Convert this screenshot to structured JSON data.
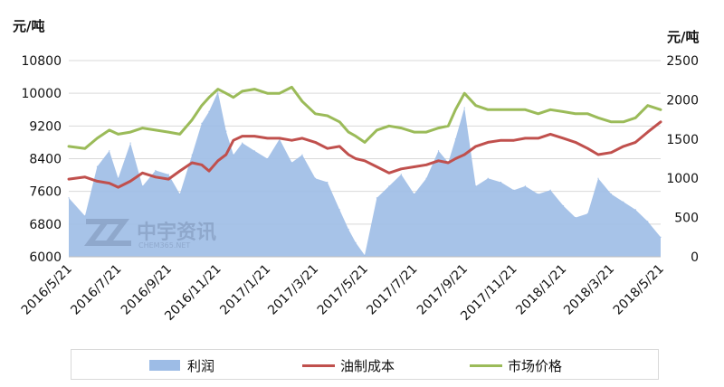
{
  "chart_data": {
    "type": "area",
    "y_left_unit": "元/吨",
    "y_right_unit": "元/吨",
    "y_left_ticks": [
      "10800",
      "10000",
      "9200",
      "8400",
      "7600",
      "6800",
      "6000"
    ],
    "y_right_ticks": [
      "2500",
      "2000",
      "1500",
      "1000",
      "500",
      "0"
    ],
    "ylim_left": [
      6000,
      10800
    ],
    "ylim_right": [
      0,
      2500
    ],
    "x_ticks": [
      "2016/5/21",
      "2016/7/21",
      "2016/9/21",
      "2016/11/21",
      "2017/1/21",
      "2017/3/21",
      "2017/5/21",
      "2017/7/21",
      "2017/9/21",
      "2017/11/21",
      "2018/1/21",
      "2018/3/21",
      "2018/5/21"
    ],
    "x_range": [
      "2016/5/21",
      "2018/5/21"
    ],
    "grid": "horizontal",
    "legend_position": "bottom",
    "series": [
      {
        "name": "利润",
        "type": "area",
        "axis": "right",
        "color": "#9dbce6",
        "x": [
          "2016/5/21",
          "2016/6/10",
          "2016/6/25",
          "2016/7/10",
          "2016/7/21",
          "2016/8/5",
          "2016/8/20",
          "2016/9/5",
          "2016/9/21",
          "2016/10/5",
          "2016/10/20",
          "2016/11/1",
          "2016/11/10",
          "2016/11/21",
          "2016/12/1",
          "2016/12/10",
          "2016/12/21",
          "2017/1/5",
          "2017/1/21",
          "2017/2/5",
          "2017/2/20",
          "2017/3/5",
          "2017/3/21",
          "2017/4/5",
          "2017/4/20",
          "2017/5/1",
          "2017/5/10",
          "2017/5/21",
          "2017/6/5",
          "2017/6/20",
          "2017/7/5",
          "2017/7/21",
          "2017/8/5",
          "2017/8/20",
          "2017/9/1",
          "2017/9/10",
          "2017/9/21",
          "2017/10/5",
          "2017/10/20",
          "2017/11/5",
          "2017/11/21",
          "2017/12/5",
          "2017/12/21",
          "2018/1/5",
          "2018/1/21",
          "2018/2/5",
          "2018/2/20",
          "2018/3/5",
          "2018/3/21",
          "2018/4/5",
          "2018/4/20",
          "2018/5/5",
          "2018/5/21"
        ],
        "values": [
          750,
          520,
          1150,
          1350,
          1000,
          1450,
          900,
          1100,
          1050,
          800,
          1300,
          1700,
          1850,
          2100,
          1600,
          1300,
          1450,
          1350,
          1250,
          1500,
          1200,
          1300,
          1000,
          950,
          600,
          350,
          180,
          20,
          750,
          900,
          1050,
          800,
          1000,
          1350,
          1200,
          1500,
          1900,
          900,
          1000,
          950,
          850,
          900,
          800,
          850,
          650,
          500,
          550,
          1000,
          800,
          700,
          600,
          450,
          250
        ]
      },
      {
        "name": "油制成本",
        "type": "line",
        "axis": "left",
        "color": "#c0504d",
        "x": [
          "2016/5/21",
          "2016/6/10",
          "2016/6/25",
          "2016/7/10",
          "2016/7/21",
          "2016/8/5",
          "2016/8/20",
          "2016/9/5",
          "2016/9/21",
          "2016/10/5",
          "2016/10/20",
          "2016/11/1",
          "2016/11/10",
          "2016/11/21",
          "2016/12/1",
          "2016/12/10",
          "2016/12/21",
          "2017/1/5",
          "2017/1/21",
          "2017/2/5",
          "2017/2/20",
          "2017/3/5",
          "2017/3/21",
          "2017/4/5",
          "2017/4/20",
          "2017/5/1",
          "2017/5/10",
          "2017/5/21",
          "2017/6/5",
          "2017/6/20",
          "2017/7/5",
          "2017/7/21",
          "2017/8/5",
          "2017/8/20",
          "2017/9/1",
          "2017/9/10",
          "2017/9/21",
          "2017/10/5",
          "2017/10/20",
          "2017/11/5",
          "2017/11/21",
          "2017/12/5",
          "2017/12/21",
          "2018/1/5",
          "2018/1/21",
          "2018/2/5",
          "2018/2/20",
          "2018/3/5",
          "2018/3/21",
          "2018/4/5",
          "2018/4/20",
          "2018/5/5",
          "2018/5/21"
        ],
        "values": [
          7900,
          7950,
          7850,
          7800,
          7700,
          7850,
          8050,
          7950,
          7900,
          8100,
          8300,
          8250,
          8100,
          8350,
          8500,
          8850,
          8950,
          8950,
          8900,
          8900,
          8850,
          8900,
          8800,
          8650,
          8700,
          8500,
          8400,
          8350,
          8200,
          8050,
          8150,
          8200,
          8250,
          8350,
          8300,
          8400,
          8500,
          8700,
          8800,
          8850,
          8850,
          8900,
          8900,
          9000,
          8900,
          8800,
          8650,
          8500,
          8550,
          8700,
          8800,
          9050,
          9300
        ]
      },
      {
        "name": "市场价格",
        "type": "line",
        "axis": "left",
        "color": "#9bbb59",
        "x": [
          "2016/5/21",
          "2016/6/10",
          "2016/6/25",
          "2016/7/10",
          "2016/7/21",
          "2016/8/5",
          "2016/8/20",
          "2016/9/5",
          "2016/9/21",
          "2016/10/5",
          "2016/10/20",
          "2016/11/1",
          "2016/11/10",
          "2016/11/21",
          "2016/12/1",
          "2016/12/10",
          "2016/12/21",
          "2017/1/5",
          "2017/1/21",
          "2017/2/5",
          "2017/2/20",
          "2017/3/5",
          "2017/3/21",
          "2017/4/5",
          "2017/4/20",
          "2017/5/1",
          "2017/5/10",
          "2017/5/21",
          "2017/6/5",
          "2017/6/20",
          "2017/7/5",
          "2017/7/21",
          "2017/8/5",
          "2017/8/20",
          "2017/9/1",
          "2017/9/10",
          "2017/9/21",
          "2017/10/5",
          "2017/10/20",
          "2017/11/5",
          "2017/11/21",
          "2017/12/5",
          "2017/12/21",
          "2018/1/5",
          "2018/1/21",
          "2018/2/5",
          "2018/2/20",
          "2018/3/5",
          "2018/3/21",
          "2018/4/5",
          "2018/4/20",
          "2018/5/5",
          "2018/5/21"
        ],
        "values": [
          8700,
          8650,
          8900,
          9100,
          9000,
          9050,
          9150,
          9100,
          9050,
          9000,
          9350,
          9700,
          9900,
          10100,
          10000,
          9900,
          10050,
          10100,
          10000,
          10000,
          10150,
          9800,
          9500,
          9450,
          9300,
          9050,
          8950,
          8800,
          9100,
          9200,
          9150,
          9050,
          9050,
          9150,
          9200,
          9600,
          10000,
          9700,
          9600,
          9600,
          9600,
          9600,
          9500,
          9600,
          9550,
          9500,
          9500,
          9400,
          9300,
          9300,
          9400,
          9700,
          9600
        ]
      }
    ]
  }
}
